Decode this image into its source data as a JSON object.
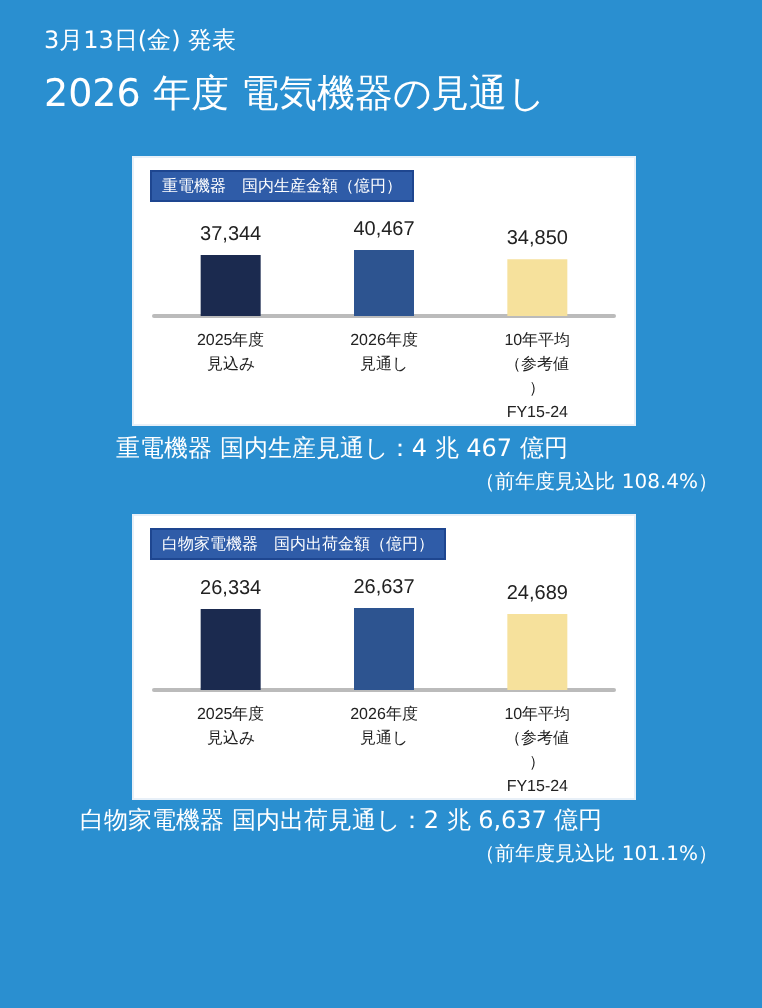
{
  "chart_data": [
    {
      "type": "bar",
      "title": "重電機器　国内生産金額（億円）",
      "categories": [
        "2025年度見込み",
        "2026年度見通し",
        "10年平均（参考値）FY15-24"
      ],
      "values": [
        37344,
        40467,
        34850
      ],
      "colors": [
        "#1b2a4f",
        "#2d5490",
        "#f6e19c"
      ],
      "tick_labels": "x",
      "value_labels": [
        "37,344",
        "40,467",
        "34,850"
      ],
      "annotations": [
        "3月13日(金) 発表",
        "2026 年度 電気機器の見通し",
        "重電機器 国内生産見通し：4 兆 467 億円",
        "（前年度見込比 108.4%）"
      ]
    },
    {
      "type": "bar",
      "title": "白物家電機器　国内出荷金額（億円）",
      "categories": [
        "2025年度見込み",
        "2026年度見通し",
        "10年平均（参考値）FY15-24"
      ],
      "values": [
        26334,
        26637,
        24689
      ],
      "colors": [
        "#1b2a4f",
        "#2d5490",
        "#f6e19c"
      ],
      "tick_labels": "x",
      "value_labels": [
        "26,334",
        "26,637",
        "24,689"
      ],
      "annotations": [
        "白物家電機器 国内出荷見通し：2 兆 6,637 億円",
        "（前年度見込比 101.1%）"
      ]
    }
  ]
}
